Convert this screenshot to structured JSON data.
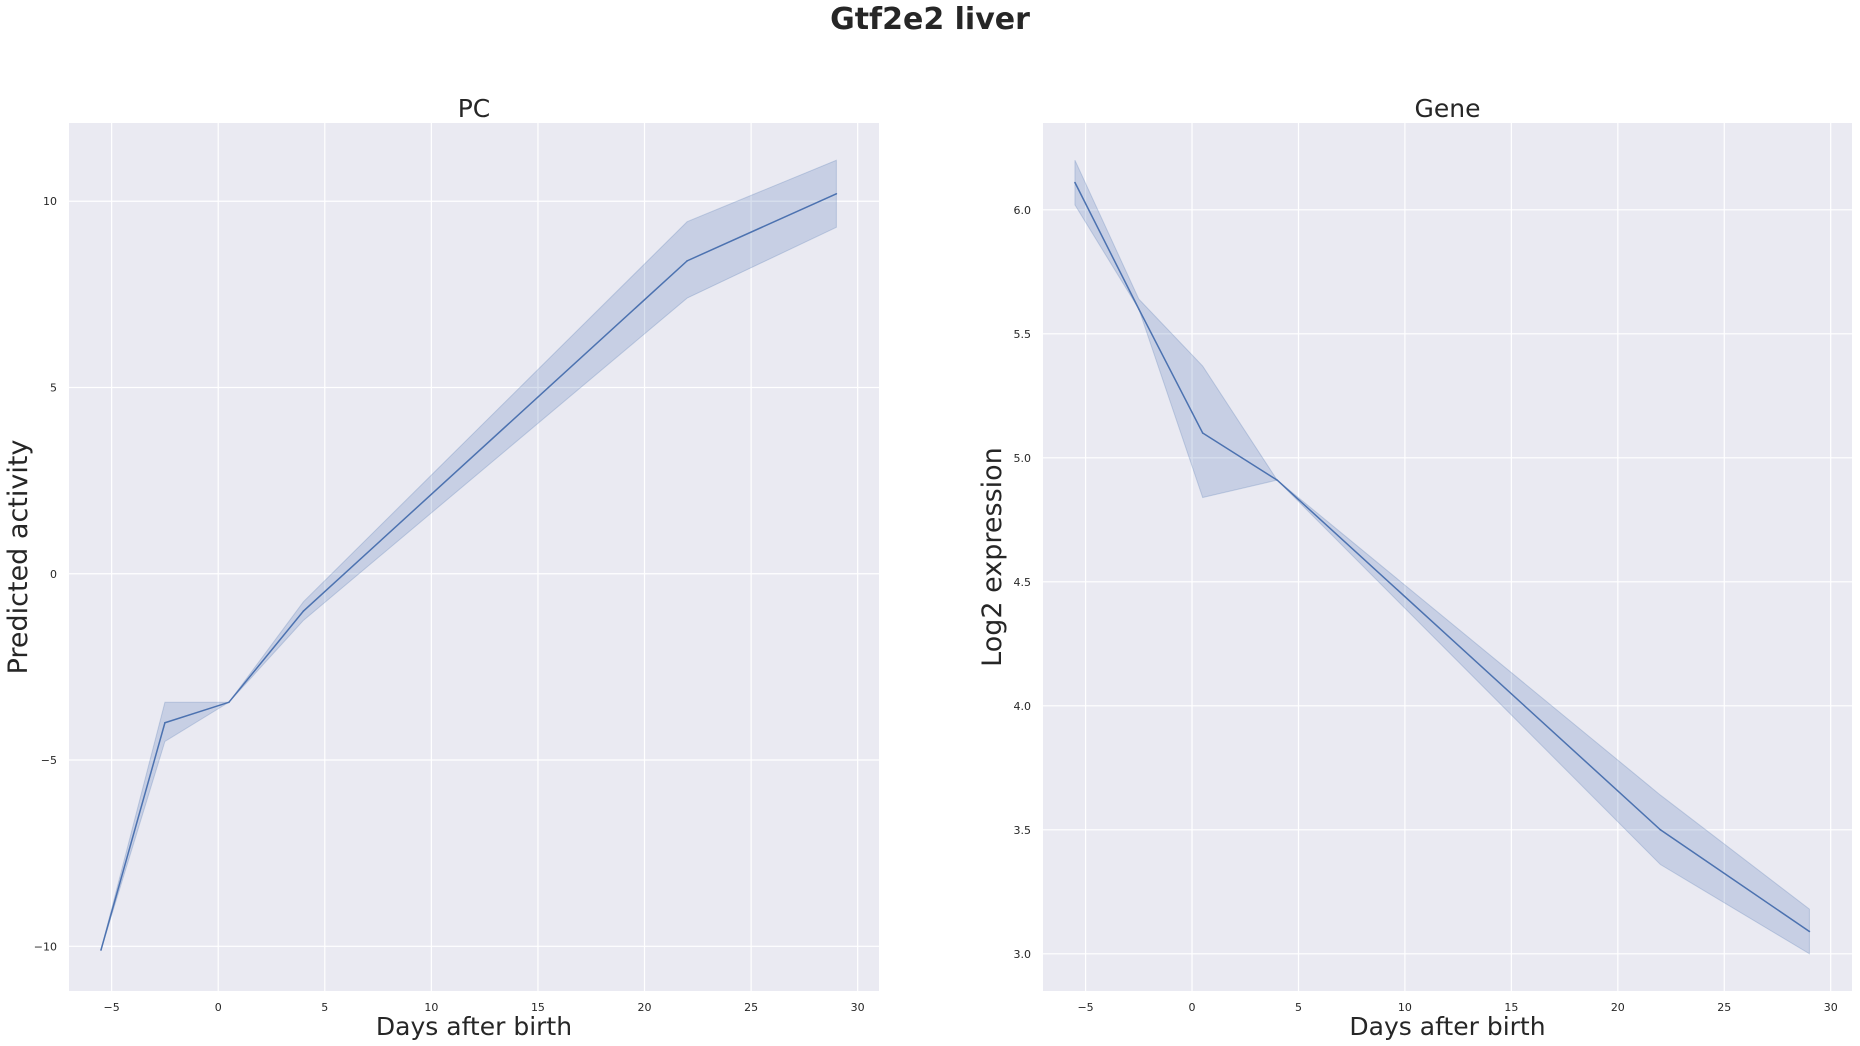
{
  "figure": {
    "title": "Gtf2e2 liver"
  },
  "colors": {
    "background": "#eaeaf2",
    "grid": "#ffffff",
    "line": "#4c72b0",
    "band": "#4c72b0",
    "text": "#262626"
  },
  "chart_data": [
    {
      "type": "line",
      "title": "PC",
      "xlabel": "Days after birth",
      "ylabel": "Predicted activity",
      "xlim": [
        -7,
        31
      ],
      "ylim": [
        -11.2,
        12.1
      ],
      "xticks": [
        -5,
        0,
        5,
        10,
        15,
        20,
        25,
        30
      ],
      "xtick_labels": [
        "−5",
        "0",
        "5",
        "10",
        "15",
        "20",
        "25",
        "30"
      ],
      "yticks": [
        -10,
        -5,
        0,
        5,
        10
      ],
      "ytick_labels": [
        "−10",
        "−5",
        "0",
        "5",
        "10"
      ],
      "grid": true,
      "series": [
        {
          "x": [
            -5.5,
            -2.5,
            0.5,
            4,
            22,
            29
          ],
          "y": [
            -10.1,
            -4.0,
            -3.45,
            -1.0,
            8.4,
            10.2
          ],
          "ci_lower": [
            -10.1,
            -4.5,
            -3.45,
            -1.25,
            7.4,
            9.3
          ],
          "ci_upper": [
            -10.1,
            -3.45,
            -3.45,
            -0.75,
            9.45,
            11.1
          ]
        }
      ]
    },
    {
      "type": "line",
      "title": "Gene",
      "xlabel": "Days after birth",
      "ylabel": "Log2 expression",
      "xlim": [
        -7,
        31
      ],
      "ylim": [
        2.85,
        6.35
      ],
      "xticks": [
        -5,
        0,
        5,
        10,
        15,
        20,
        25,
        30
      ],
      "xtick_labels": [
        "−5",
        "0",
        "5",
        "10",
        "15",
        "20",
        "25",
        "30"
      ],
      "yticks": [
        3.0,
        3.5,
        4.0,
        4.5,
        5.0,
        5.5,
        6.0
      ],
      "ytick_labels": [
        "3.0",
        "3.5",
        "4.0",
        "4.5",
        "5.0",
        "5.5",
        "6.0"
      ],
      "grid": true,
      "series": [
        {
          "x": [
            -5.5,
            -2.5,
            0.5,
            4,
            22,
            29
          ],
          "y": [
            6.11,
            5.6,
            5.1,
            4.91,
            3.5,
            3.09
          ],
          "ci_lower": [
            6.02,
            5.6,
            4.84,
            4.91,
            3.36,
            3.0
          ],
          "ci_upper": [
            6.2,
            5.64,
            5.37,
            4.91,
            3.64,
            3.18
          ]
        }
      ]
    }
  ]
}
